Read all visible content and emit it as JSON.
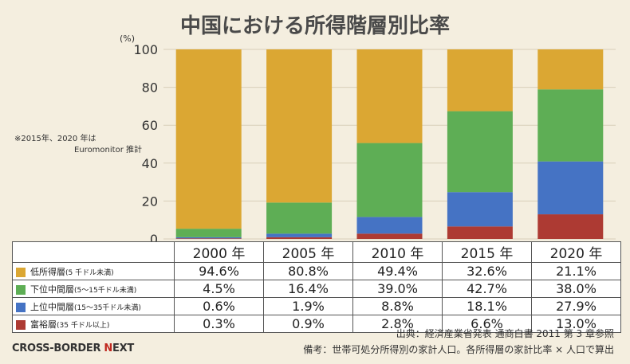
{
  "title": "中国における所得階層別比率",
  "unit_label": "(%)",
  "note": [
    "※2015年、2020 年は",
    "Euromonitor 推計"
  ],
  "chart_data": {
    "type": "bar",
    "stacked": true,
    "title": "中国における所得階層別比率",
    "ylabel": "(%)",
    "ylim": [
      0,
      100
    ],
    "yticks": [
      0,
      20,
      40,
      60,
      80,
      100
    ],
    "categories": [
      "2000 年",
      "2005 年",
      "2010 年",
      "2015 年",
      "2020 年"
    ],
    "series": [
      {
        "name": "低所得層",
        "detail": "(5 千ドル未満)",
        "color": "#dba733",
        "values": [
          94.6,
          80.8,
          49.4,
          32.6,
          21.1
        ],
        "labels": [
          "94.6%",
          "80.8%",
          "49.4%",
          "32.6%",
          "21.1%"
        ]
      },
      {
        "name": "下位中間層",
        "detail": "(5～15千ドル未満)",
        "color": "#5eae55",
        "values": [
          4.5,
          16.4,
          39.0,
          42.7,
          38.0
        ],
        "labels": [
          "4.5%",
          "16.4%",
          "39.0%",
          "42.7%",
          "38.0%"
        ]
      },
      {
        "name": "上位中間層",
        "detail": "(15～35千ドル未満)",
        "color": "#4573c4",
        "values": [
          0.6,
          1.9,
          8.8,
          18.1,
          27.9
        ],
        "labels": [
          "0.6%",
          "1.9%",
          "8.8%",
          "18.1%",
          "27.9%"
        ]
      },
      {
        "name": "富裕層",
        "detail": "(35 千ドル以上)",
        "color": "#ad3a33",
        "values": [
          0.3,
          0.9,
          2.8,
          6.6,
          13.0
        ],
        "labels": [
          "0.3%",
          "0.9%",
          "2.8%",
          "6.6%",
          "13.0%"
        ]
      }
    ]
  },
  "source": "出典：経済産業省発表 通商白書 2011 第 3 章参照",
  "remark": "備考：世帯可処分所得別の家計人口。各所得層の家計比率 × 人口で算出",
  "logo": {
    "part1": "CROSS-BORDER ",
    "part2": "N",
    "part3": "EXT"
  }
}
